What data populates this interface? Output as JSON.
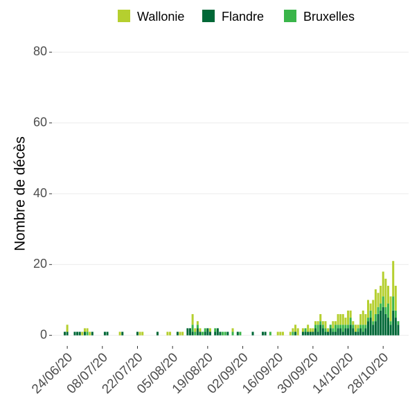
{
  "chart_data": {
    "type": "stacked_bar",
    "y_label": "Nombre de décès",
    "categories": [
      null,
      "24/06/20",
      null,
      null,
      null,
      null,
      null,
      null,
      null,
      null,
      null,
      null,
      null,
      null,
      null,
      "08/07/20",
      null,
      null,
      null,
      null,
      null,
      null,
      null,
      null,
      null,
      null,
      null,
      null,
      null,
      "22/07/20",
      null,
      null,
      null,
      null,
      null,
      null,
      null,
      null,
      null,
      null,
      null,
      null,
      null,
      "05/08/20",
      null,
      null,
      null,
      null,
      null,
      null,
      null,
      null,
      null,
      null,
      null,
      null,
      null,
      "19/08/20",
      null,
      null,
      null,
      null,
      null,
      null,
      null,
      null,
      null,
      null,
      null,
      null,
      null,
      "02/09/20",
      null,
      null,
      null,
      null,
      null,
      null,
      null,
      null,
      null,
      null,
      null,
      null,
      null,
      "16/09/20",
      null,
      null,
      null,
      null,
      null,
      null,
      null,
      null,
      null,
      null,
      null,
      null,
      null,
      "30/09/20",
      null,
      null,
      null,
      null,
      null,
      null,
      null,
      null,
      null,
      null,
      null,
      null,
      null,
      "14/10/20",
      null,
      null,
      null,
      null,
      null,
      null,
      null,
      null,
      null,
      null,
      null,
      null,
      null,
      "28/10/20",
      null,
      null,
      null,
      null,
      null,
      null
    ],
    "series": [
      {
        "name": "Wallonie",
        "color": "#b5cf2f",
        "values": [
          0,
          2,
          0,
          0,
          0,
          0,
          0,
          1,
          1,
          1,
          1,
          0,
          0,
          0,
          0,
          0,
          0,
          0,
          0,
          0,
          0,
          0,
          1,
          0,
          0,
          0,
          0,
          0,
          0,
          0,
          1,
          1,
          0,
          0,
          0,
          0,
          0,
          0,
          0,
          0,
          0,
          1,
          1,
          0,
          0,
          0,
          1,
          1,
          0,
          0,
          0,
          3,
          1,
          1,
          1,
          0,
          0,
          0,
          1,
          0,
          0,
          0,
          0,
          0,
          0,
          0,
          0,
          1,
          0,
          0,
          0,
          0,
          0,
          0,
          0,
          0,
          0,
          0,
          0,
          0,
          0,
          0,
          0,
          0,
          0,
          1,
          1,
          1,
          0,
          0,
          1,
          1,
          2,
          2,
          0,
          1,
          0,
          2,
          1,
          1,
          1,
          1,
          2,
          1,
          2,
          1,
          0,
          2,
          1,
          3,
          3,
          3,
          2,
          4,
          2,
          1,
          2,
          1,
          3,
          4,
          3,
          5,
          2,
          6,
          7,
          4,
          5,
          7,
          8,
          5,
          7,
          10,
          7,
          0
        ]
      },
      {
        "name": "Flandre",
        "color": "#006837",
        "values": [
          1,
          1,
          0,
          0,
          1,
          1,
          1,
          0,
          1,
          0,
          0,
          1,
          0,
          0,
          0,
          0,
          1,
          1,
          0,
          0,
          0,
          0,
          0,
          1,
          0,
          0,
          0,
          0,
          0,
          1,
          0,
          0,
          0,
          0,
          0,
          0,
          0,
          1,
          0,
          0,
          0,
          0,
          0,
          0,
          0,
          1,
          0,
          0,
          0,
          2,
          2,
          1,
          0,
          2,
          1,
          0,
          1,
          2,
          1,
          0,
          1,
          2,
          1,
          0,
          0,
          1,
          0,
          0,
          0,
          1,
          0,
          0,
          0,
          0,
          0,
          1,
          0,
          0,
          0,
          1,
          1,
          0,
          0,
          0,
          0,
          0,
          0,
          0,
          0,
          0,
          0,
          0,
          1,
          0,
          0,
          1,
          1,
          1,
          1,
          1,
          2,
          1,
          3,
          2,
          1,
          1,
          2,
          1,
          1,
          2,
          2,
          1,
          2,
          2,
          3,
          2,
          1,
          1,
          2,
          1,
          2,
          4,
          5,
          3,
          4,
          6,
          7,
          8,
          6,
          5,
          3,
          7,
          5,
          3
        ]
      },
      {
        "name": "Bruxelles",
        "color": "#3ab54a",
        "values": [
          0,
          0,
          0,
          0,
          0,
          0,
          0,
          0,
          0,
          1,
          0,
          0,
          0,
          0,
          0,
          0,
          0,
          0,
          0,
          0,
          0,
          0,
          0,
          0,
          0,
          0,
          0,
          0,
          0,
          0,
          0,
          0,
          0,
          0,
          0,
          0,
          0,
          0,
          0,
          0,
          0,
          0,
          0,
          0,
          0,
          0,
          0,
          0,
          0,
          0,
          0,
          2,
          1,
          1,
          0,
          1,
          1,
          0,
          0,
          0,
          1,
          0,
          0,
          1,
          1,
          0,
          0,
          1,
          0,
          0,
          1,
          0,
          0,
          0,
          0,
          0,
          0,
          0,
          0,
          0,
          0,
          0,
          1,
          0,
          0,
          0,
          0,
          0,
          0,
          0,
          0,
          1,
          0,
          0,
          0,
          0,
          1,
          0,
          0,
          0,
          1,
          2,
          1,
          1,
          1,
          0,
          1,
          1,
          2,
          1,
          1,
          2,
          1,
          1,
          2,
          1,
          0,
          1,
          1,
          2,
          1,
          1,
          2,
          1,
          2,
          2,
          2,
          3,
          2,
          4,
          1,
          4,
          2,
          1
        ]
      }
    ],
    "ylim": [
      -3,
      83
    ],
    "yticks": [
      0,
      20,
      40,
      60,
      80
    ],
    "grid": true,
    "legend": "top"
  }
}
